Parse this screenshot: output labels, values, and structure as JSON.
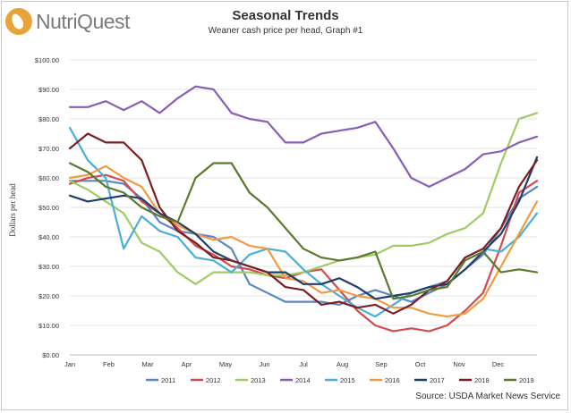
{
  "brand": {
    "name": "NutriQuest",
    "logo_icon": "leaf-logo-icon",
    "logo_color": "#e8a33a"
  },
  "chart_data": {
    "type": "line",
    "title": "Seasonal Trends",
    "subtitle": "Weaner cash price per head, Graph #1",
    "xlabel": "",
    "ylabel": "Dollars per head",
    "source": "Source: USDA Market News Service",
    "ylim": [
      0,
      100
    ],
    "xlim": [
      0,
      52
    ],
    "yticks": [
      "$0.00",
      "$10.00",
      "$20.00",
      "$30.00",
      "$40.00",
      "$50.00",
      "$60.00",
      "$70.00",
      "$80.00",
      "$90.00",
      "$100.00"
    ],
    "months": [
      "Jan",
      "Feb",
      "Mar",
      "Apr",
      "May",
      "Jun",
      "Jul",
      "Aug",
      "Sep",
      "Oct",
      "Nov",
      "Dec"
    ],
    "grid": true,
    "legend_position": "bottom",
    "series": [
      {
        "name": "2011",
        "color": "#5b86c4",
        "points": [
          [
            0,
            59
          ],
          [
            2,
            59
          ],
          [
            4,
            59
          ],
          [
            6,
            58
          ],
          [
            8,
            53
          ],
          [
            10,
            45
          ],
          [
            12,
            42
          ],
          [
            14,
            41
          ],
          [
            16,
            40
          ],
          [
            18,
            36
          ],
          [
            20,
            24
          ],
          [
            22,
            21
          ],
          [
            24,
            18
          ],
          [
            26,
            18
          ],
          [
            28,
            18
          ],
          [
            30,
            17
          ],
          [
            32,
            20
          ],
          [
            34,
            22
          ],
          [
            36,
            20
          ],
          [
            38,
            18
          ],
          [
            40,
            21
          ],
          [
            42,
            24
          ],
          [
            44,
            29
          ],
          [
            46,
            34
          ],
          [
            48,
            43
          ],
          [
            50,
            53
          ],
          [
            52,
            57
          ]
        ]
      },
      {
        "name": "2012",
        "color": "#d24b4e",
        "points": [
          [
            0,
            58
          ],
          [
            2,
            60
          ],
          [
            4,
            61
          ],
          [
            6,
            59
          ],
          [
            8,
            52
          ],
          [
            10,
            48
          ],
          [
            12,
            43
          ],
          [
            14,
            37
          ],
          [
            16,
            34
          ],
          [
            18,
            30
          ],
          [
            20,
            29
          ],
          [
            22,
            27
          ],
          [
            24,
            26
          ],
          [
            26,
            28
          ],
          [
            28,
            29
          ],
          [
            30,
            22
          ],
          [
            32,
            15
          ],
          [
            34,
            10
          ],
          [
            36,
            8
          ],
          [
            38,
            9
          ],
          [
            40,
            8
          ],
          [
            42,
            10
          ],
          [
            44,
            15
          ],
          [
            46,
            21
          ],
          [
            48,
            37
          ],
          [
            50,
            55
          ],
          [
            52,
            59
          ]
        ]
      },
      {
        "name": "2013",
        "color": "#9ecc62",
        "points": [
          [
            0,
            59
          ],
          [
            2,
            56
          ],
          [
            4,
            52
          ],
          [
            6,
            48
          ],
          [
            8,
            38
          ],
          [
            10,
            35
          ],
          [
            12,
            28
          ],
          [
            14,
            24
          ],
          [
            16,
            28
          ],
          [
            18,
            28
          ],
          [
            20,
            28
          ],
          [
            22,
            27
          ],
          [
            24,
            27
          ],
          [
            26,
            28
          ],
          [
            28,
            30
          ],
          [
            30,
            32
          ],
          [
            32,
            33
          ],
          [
            34,
            34
          ],
          [
            36,
            37
          ],
          [
            38,
            37
          ],
          [
            40,
            38
          ],
          [
            42,
            41
          ],
          [
            44,
            43
          ],
          [
            46,
            48
          ],
          [
            48,
            65
          ],
          [
            50,
            80
          ],
          [
            52,
            82
          ]
        ]
      },
      {
        "name": "2014",
        "color": "#8b5eb5",
        "points": [
          [
            0,
            84
          ],
          [
            2,
            84
          ],
          [
            4,
            86
          ],
          [
            6,
            83
          ],
          [
            8,
            86
          ],
          [
            10,
            82
          ],
          [
            12,
            87
          ],
          [
            14,
            91
          ],
          [
            16,
            90
          ],
          [
            18,
            82
          ],
          [
            20,
            80
          ],
          [
            22,
            79
          ],
          [
            24,
            72
          ],
          [
            26,
            72
          ],
          [
            28,
            75
          ],
          [
            30,
            76
          ],
          [
            32,
            77
          ],
          [
            34,
            79
          ],
          [
            36,
            70
          ],
          [
            38,
            60
          ],
          [
            40,
            57
          ],
          [
            42,
            60
          ],
          [
            44,
            63
          ],
          [
            46,
            68
          ],
          [
            48,
            69
          ],
          [
            50,
            72
          ],
          [
            52,
            74
          ]
        ]
      },
      {
        "name": "2015",
        "color": "#4baed8",
        "points": [
          [
            0,
            77
          ],
          [
            2,
            66
          ],
          [
            4,
            60
          ],
          [
            6,
            36
          ],
          [
            8,
            47
          ],
          [
            10,
            42
          ],
          [
            12,
            40
          ],
          [
            14,
            33
          ],
          [
            16,
            32
          ],
          [
            18,
            28
          ],
          [
            20,
            34
          ],
          [
            22,
            36
          ],
          [
            24,
            35
          ],
          [
            26,
            29
          ],
          [
            28,
            24
          ],
          [
            30,
            20
          ],
          [
            32,
            16
          ],
          [
            34,
            13
          ],
          [
            36,
            17
          ],
          [
            38,
            21
          ],
          [
            40,
            23
          ],
          [
            42,
            25
          ],
          [
            44,
            33
          ],
          [
            46,
            36
          ],
          [
            48,
            35
          ],
          [
            50,
            40
          ],
          [
            52,
            48
          ]
        ]
      },
      {
        "name": "2016",
        "color": "#f29a3f",
        "points": [
          [
            0,
            60
          ],
          [
            2,
            61
          ],
          [
            4,
            64
          ],
          [
            6,
            60
          ],
          [
            8,
            57
          ],
          [
            10,
            48
          ],
          [
            12,
            44
          ],
          [
            14,
            41
          ],
          [
            16,
            39
          ],
          [
            18,
            40
          ],
          [
            20,
            37
          ],
          [
            22,
            36
          ],
          [
            24,
            26
          ],
          [
            26,
            25
          ],
          [
            28,
            21
          ],
          [
            30,
            22
          ],
          [
            32,
            20
          ],
          [
            34,
            19
          ],
          [
            36,
            16
          ],
          [
            38,
            16
          ],
          [
            40,
            14
          ],
          [
            42,
            13
          ],
          [
            44,
            14
          ],
          [
            46,
            19
          ],
          [
            48,
            30
          ],
          [
            50,
            41
          ],
          [
            52,
            52
          ]
        ]
      },
      {
        "name": "2017",
        "color": "#1f3f6b",
        "points": [
          [
            0,
            54
          ],
          [
            2,
            52
          ],
          [
            4,
            53
          ],
          [
            6,
            54
          ],
          [
            8,
            53
          ],
          [
            10,
            48
          ],
          [
            12,
            45
          ],
          [
            14,
            41
          ],
          [
            16,
            35
          ],
          [
            18,
            32
          ],
          [
            20,
            30
          ],
          [
            22,
            28
          ],
          [
            24,
            28
          ],
          [
            26,
            24
          ],
          [
            28,
            24
          ],
          [
            30,
            26
          ],
          [
            32,
            23
          ],
          [
            34,
            19
          ],
          [
            36,
            20
          ],
          [
            38,
            21
          ],
          [
            40,
            23
          ],
          [
            42,
            24
          ],
          [
            44,
            29
          ],
          [
            46,
            35
          ],
          [
            48,
            41
          ],
          [
            50,
            52
          ],
          [
            52,
            67
          ]
        ]
      },
      {
        "name": "2018",
        "color": "#7b1f22",
        "points": [
          [
            0,
            70
          ],
          [
            2,
            75
          ],
          [
            4,
            72
          ],
          [
            6,
            72
          ],
          [
            8,
            66
          ],
          [
            10,
            50
          ],
          [
            12,
            42
          ],
          [
            14,
            38
          ],
          [
            16,
            33
          ],
          [
            18,
            32
          ],
          [
            20,
            30
          ],
          [
            22,
            28
          ],
          [
            24,
            23
          ],
          [
            26,
            22
          ],
          [
            28,
            17
          ],
          [
            30,
            18
          ],
          [
            32,
            16
          ],
          [
            34,
            17
          ],
          [
            36,
            14
          ],
          [
            38,
            17
          ],
          [
            40,
            22
          ],
          [
            42,
            25
          ],
          [
            44,
            33
          ],
          [
            46,
            36
          ],
          [
            48,
            43
          ],
          [
            50,
            57
          ],
          [
            52,
            66
          ]
        ]
      },
      {
        "name": "2019",
        "color": "#5b7a2c",
        "points": [
          [
            0,
            65
          ],
          [
            2,
            62
          ],
          [
            4,
            57
          ],
          [
            6,
            55
          ],
          [
            8,
            50
          ],
          [
            10,
            47
          ],
          [
            12,
            45
          ],
          [
            14,
            60
          ],
          [
            16,
            65
          ],
          [
            18,
            65
          ],
          [
            20,
            55
          ],
          [
            22,
            50
          ],
          [
            24,
            43
          ],
          [
            26,
            36
          ],
          [
            28,
            33
          ],
          [
            30,
            32
          ],
          [
            32,
            33
          ],
          [
            34,
            35
          ],
          [
            36,
            19
          ],
          [
            38,
            20
          ],
          [
            40,
            22
          ],
          [
            42,
            23
          ],
          [
            44,
            32
          ],
          [
            46,
            35
          ],
          [
            48,
            28
          ],
          [
            50,
            29
          ],
          [
            52,
            28
          ]
        ]
      }
    ]
  }
}
